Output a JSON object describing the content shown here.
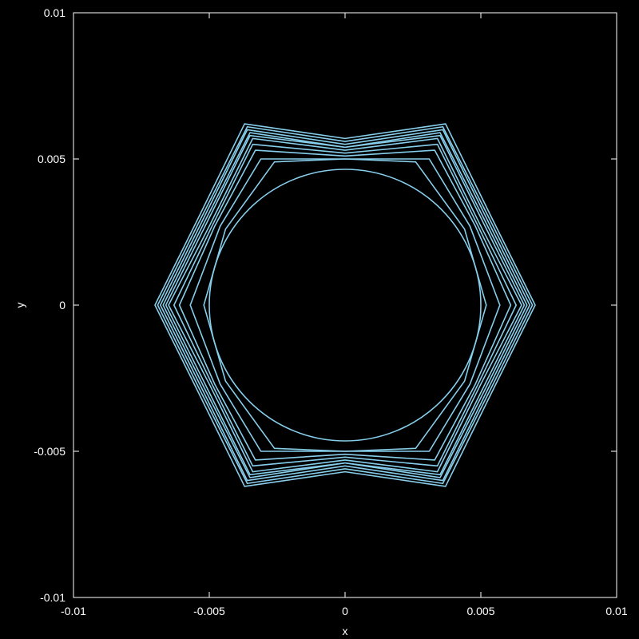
{
  "chart_data": {
    "type": "line",
    "title": "",
    "xlabel": "x",
    "ylabel": "y",
    "xlim": [
      -0.01,
      0.01
    ],
    "ylim": [
      -0.01,
      0.01
    ],
    "x_ticks": [
      {
        "value": -0.01,
        "label": "-0.01"
      },
      {
        "value": -0.005,
        "label": "-0.005"
      },
      {
        "value": 0,
        "label": "0"
      },
      {
        "value": 0.005,
        "label": "0.005"
      },
      {
        "value": 0.01,
        "label": "0.01"
      }
    ],
    "y_ticks": [
      {
        "value": -0.01,
        "label": "-0.01"
      },
      {
        "value": -0.005,
        "label": "-0.005"
      },
      {
        "value": 0,
        "label": "0"
      },
      {
        "value": 0.005,
        "label": "0.005"
      },
      {
        "value": 0.01,
        "label": "0.01"
      }
    ],
    "grid": false,
    "legend": "none",
    "background_color": "#000000",
    "axis_color": "#ffffff",
    "line_color": "#87ceeb",
    "shape": "closed curves (x(t), y(t)), t from 0 to 360 degrees: one circle of radius 0.005 centred at the origin, then nested curves evolving toward a six-lobed star outline with tips on the x axis",
    "series": [
      {
        "values": [
          [
            0.005,
            0
          ],
          [
            0.0043,
            0.0025
          ],
          [
            0.0025,
            0.0043
          ],
          [
            0,
            0.005
          ],
          [
            -0.0025,
            0.0043
          ],
          [
            -0.0043,
            0.0025
          ],
          [
            -0.005,
            0
          ],
          [
            -0.0043,
            -0.0025
          ],
          [
            -0.0025,
            -0.0043
          ],
          [
            0,
            -0.005
          ],
          [
            0.0025,
            -0.0043
          ],
          [
            0.0043,
            -0.0025
          ]
        ]
      },
      {
        "values": [
          [
            0.0052,
            0
          ],
          [
            0.0044,
            0.0026
          ],
          [
            0.0026,
            0.0049
          ],
          [
            0,
            0.005
          ],
          [
            -0.0026,
            0.0049
          ],
          [
            -0.0044,
            0.0026
          ],
          [
            -0.0052,
            0
          ],
          [
            -0.0044,
            -0.0026
          ],
          [
            -0.0026,
            -0.0049
          ],
          [
            0,
            -0.005
          ],
          [
            0.0026,
            -0.0049
          ],
          [
            0.0044,
            -0.0026
          ]
        ]
      },
      {
        "values": [
          [
            0.0057,
            0
          ],
          [
            0.0046,
            0.0027
          ],
          [
            0.0031,
            0.005
          ],
          [
            0,
            0.005
          ],
          [
            -0.0031,
            0.005
          ],
          [
            -0.0046,
            0.0027
          ],
          [
            -0.0057,
            0
          ],
          [
            -0.0046,
            -0.0027
          ],
          [
            -0.0031,
            -0.005
          ],
          [
            0,
            -0.005
          ],
          [
            0.0031,
            -0.005
          ],
          [
            0.0046,
            -0.0027
          ]
        ]
      },
      {
        "values": [
          [
            0.0061,
            0
          ],
          [
            0.0048,
            0.0027
          ],
          [
            0.0033,
            0.0053
          ],
          [
            0,
            0.0051
          ],
          [
            -0.0033,
            0.0053
          ],
          [
            -0.0048,
            0.0027
          ],
          [
            -0.0061,
            0
          ],
          [
            -0.0048,
            -0.0027
          ],
          [
            -0.0033,
            -0.0053
          ],
          [
            0,
            -0.0051
          ],
          [
            0.0033,
            -0.0053
          ],
          [
            0.0048,
            -0.0027
          ]
        ]
      },
      {
        "values": [
          [
            0.0063,
            0
          ],
          [
            0.0049,
            0.0027
          ],
          [
            0.0034,
            0.0055
          ],
          [
            0,
            0.0052
          ],
          [
            -0.0034,
            0.0055
          ],
          [
            -0.0049,
            0.0027
          ],
          [
            -0.0063,
            0
          ],
          [
            -0.0049,
            -0.0027
          ],
          [
            -0.0034,
            -0.0055
          ],
          [
            0,
            -0.0052
          ],
          [
            0.0034,
            -0.0055
          ],
          [
            0.0049,
            -0.0027
          ]
        ]
      },
      {
        "values": [
          [
            0.0065,
            0
          ],
          [
            0.005,
            0.0027
          ],
          [
            0.0034,
            0.0057
          ],
          [
            0,
            0.0053
          ],
          [
            -0.0034,
            0.0057
          ],
          [
            -0.005,
            0.0027
          ],
          [
            -0.0065,
            0
          ],
          [
            -0.005,
            -0.0027
          ],
          [
            -0.0034,
            -0.0057
          ],
          [
            0,
            -0.0053
          ],
          [
            0.0034,
            -0.0057
          ],
          [
            0.005,
            -0.0027
          ]
        ]
      },
      {
        "values": [
          [
            0.0066,
            0
          ],
          [
            0.0051,
            0.0028
          ],
          [
            0.0035,
            0.0058
          ],
          [
            0,
            0.0054
          ],
          [
            -0.0035,
            0.0058
          ],
          [
            -0.0051,
            0.0028
          ],
          [
            -0.0066,
            0
          ],
          [
            -0.0051,
            -0.0028
          ],
          [
            -0.0035,
            -0.0058
          ],
          [
            0,
            -0.0054
          ],
          [
            0.0035,
            -0.0058
          ],
          [
            0.0051,
            -0.0028
          ]
        ]
      },
      {
        "values": [
          [
            0.0067,
            0
          ],
          [
            0.0052,
            0.0028
          ],
          [
            0.0035,
            0.0059
          ],
          [
            0,
            0.0054
          ],
          [
            -0.0035,
            0.0059
          ],
          [
            -0.0052,
            0.0028
          ],
          [
            -0.0067,
            0
          ],
          [
            -0.0052,
            -0.0028
          ],
          [
            -0.0035,
            -0.0059
          ],
          [
            0,
            -0.0054
          ],
          [
            0.0035,
            -0.0059
          ],
          [
            0.0052,
            -0.0028
          ]
        ]
      },
      {
        "values": [
          [
            0.0068,
            0
          ],
          [
            0.0053,
            0.0028
          ],
          [
            0.0036,
            0.006
          ],
          [
            0,
            0.0055
          ],
          [
            -0.0036,
            0.006
          ],
          [
            -0.0053,
            0.0028
          ],
          [
            -0.0068,
            0
          ],
          [
            -0.0053,
            -0.0028
          ],
          [
            -0.0036,
            -0.006
          ],
          [
            0,
            -0.0055
          ],
          [
            0.0036,
            -0.006
          ],
          [
            0.0053,
            -0.0028
          ]
        ]
      },
      {
        "values": [
          [
            0.0069,
            0
          ],
          [
            0.0054,
            0.0028
          ],
          [
            0.0036,
            0.0061
          ],
          [
            0,
            0.0056
          ],
          [
            -0.0036,
            0.0061
          ],
          [
            -0.0054,
            0.0028
          ],
          [
            -0.0069,
            0
          ],
          [
            -0.0054,
            -0.0028
          ],
          [
            -0.0036,
            -0.0061
          ],
          [
            0,
            -0.0056
          ],
          [
            0.0036,
            -0.0061
          ],
          [
            0.0054,
            -0.0028
          ]
        ]
      },
      {
        "values": [
          [
            0.007,
            0
          ],
          [
            0.0055,
            0.0028
          ],
          [
            0.0037,
            0.0062
          ],
          [
            0,
            0.0057
          ],
          [
            -0.0037,
            0.0062
          ],
          [
            -0.0055,
            0.0028
          ],
          [
            -0.007,
            0
          ],
          [
            -0.0055,
            -0.0028
          ],
          [
            -0.0037,
            -0.0062
          ],
          [
            0,
            -0.0057
          ],
          [
            0.0037,
            -0.0062
          ],
          [
            0.0055,
            -0.0028
          ]
        ]
      }
    ]
  }
}
